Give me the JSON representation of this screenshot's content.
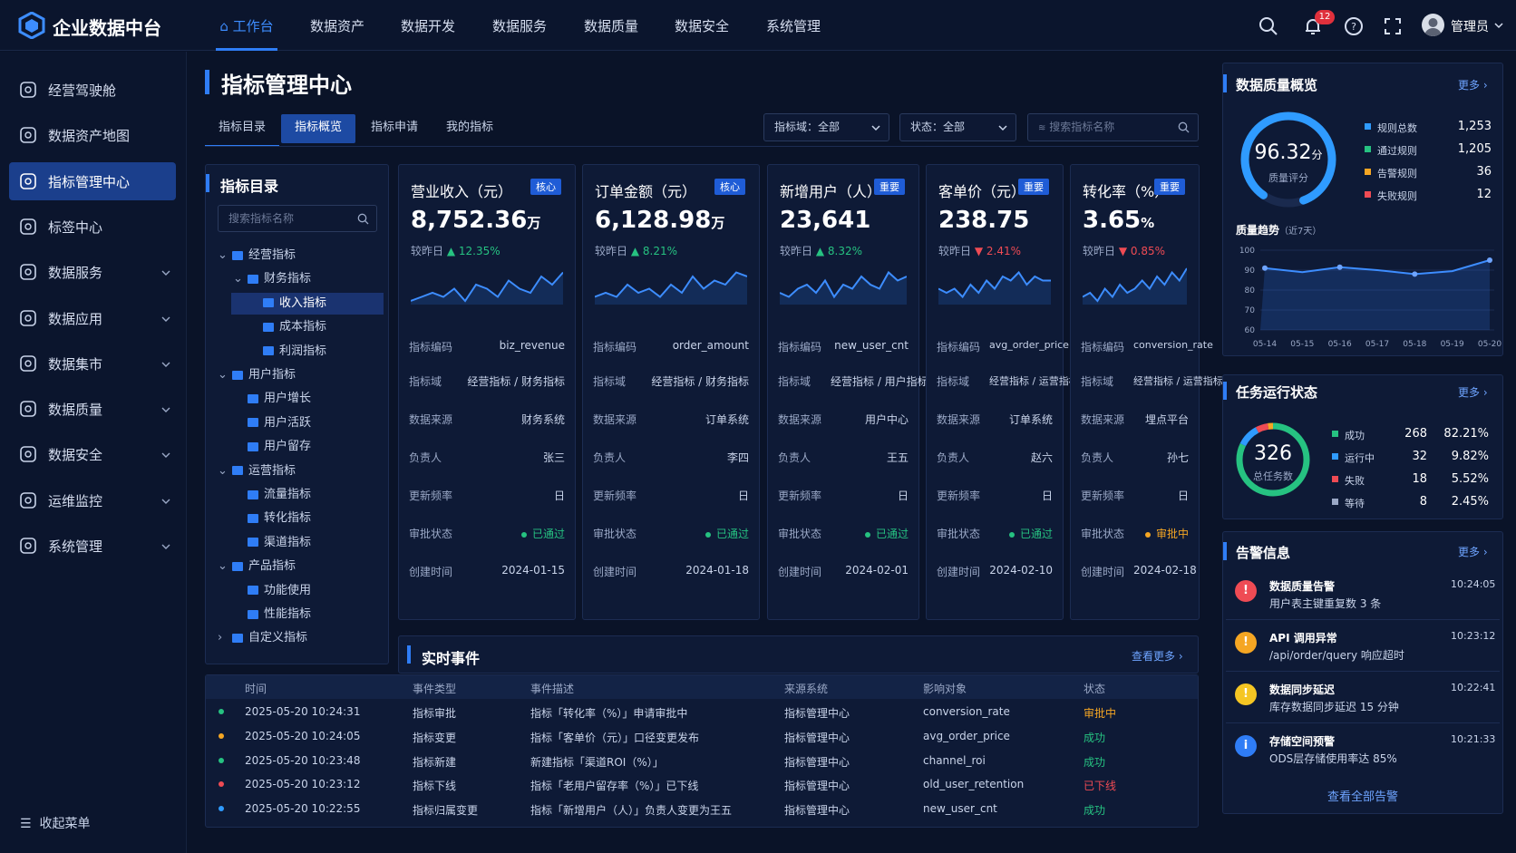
{
  "app": {
    "title": "企业数据中台"
  },
  "nav": [
    "工作台",
    "数据资产",
    "数据开发",
    "数据服务",
    "数据质量",
    "数据安全",
    "系统管理"
  ],
  "header": {
    "notif_count": "12",
    "user": "管理员"
  },
  "sidebar": {
    "items": [
      "经营驾驶舱",
      "数据资产地图",
      "指标管理中心",
      "标签中心",
      "数据服务",
      "数据应用",
      "数据集市",
      "数据质量",
      "数据安全",
      "运维监控",
      "系统管理"
    ],
    "collapse": "收起菜单"
  },
  "page": {
    "title": "指标管理中心",
    "tabs": [
      "指标目录",
      "指标概览",
      "指标申请",
      "我的指标"
    ],
    "filter_domain": "指标域：全部",
    "filter_status": "状态：全部",
    "search_placeholder": "搜索指标名称"
  },
  "tree": {
    "title": "指标目录",
    "search_placeholder": "搜索指标名称",
    "nodes": [
      "经营指标",
      "财务指标",
      "收入指标",
      "成本指标",
      "利润指标",
      "用户指标",
      "用户增长",
      "用户活跃",
      "用户留存",
      "运营指标",
      "流量指标",
      "转化指标",
      "渠道指标",
      "产品指标",
      "功能使用",
      "性能指标",
      "自定义指标"
    ]
  },
  "card_labels": {
    "compare": "较昨日",
    "code": "指标编码",
    "domain": "指标域",
    "source": "数据来源",
    "owner": "负责人",
    "freq": "更新频率",
    "approval": "审批状态",
    "created": "创建时间"
  },
  "cards": [
    {
      "title": "营业收入（元）",
      "tag": "核心",
      "value": "8,752.36",
      "unit": "万",
      "change": "12.35%",
      "code": "biz_revenue",
      "domain": "经营指标 / 财务指标",
      "source": "财务系统",
      "owner": "张三",
      "freq": "日",
      "status": "已通过",
      "created": "2024-01-15"
    },
    {
      "title": "订单金额（元）",
      "tag": "核心",
      "value": "6,128.98",
      "unit": "万",
      "change": "8.21%",
      "code": "order_amount",
      "domain": "经营指标 / 财务指标",
      "source": "订单系统",
      "owner": "李四",
      "freq": "日",
      "status": "已通过",
      "created": "2024-01-18"
    },
    {
      "title": "新增用户（人）",
      "tag": "重要",
      "value": "23,641",
      "unit": "",
      "change": "8.32%",
      "code": "new_user_cnt",
      "domain": "经营指标 / 用户指标",
      "source": "用户中心",
      "owner": "王五",
      "freq": "日",
      "status": "已通过",
      "created": "2024-02-01"
    },
    {
      "title": "客单价（元）",
      "tag": "重要",
      "value": "238.75",
      "unit": "",
      "change": "2.41%",
      "code": "avg_order_price",
      "domain": "经营指标 / 运营指标",
      "source": "订单系统",
      "owner": "赵六",
      "freq": "日",
      "status": "已通过",
      "created": "2024-02-10"
    },
    {
      "title": "转化率（%）",
      "tag": "重要",
      "value": "3.65",
      "unit": "%",
      "change": "0.85%",
      "code": "conversion_rate",
      "domain": "经营指标 / 运营指标",
      "source": "埋点平台",
      "owner": "孙七",
      "freq": "日",
      "status": "审批中",
      "created": "2024-02-18"
    }
  ],
  "events": {
    "title": "实时事件",
    "more": "查看更多",
    "headers": [
      "时间",
      "事件类型",
      "事件描述",
      "来源系统",
      "影响对象",
      "状态"
    ],
    "rows": [
      [
        "2025-05-20 10:24:31",
        "指标审批",
        "指标「转化率（%）」申请审批中",
        "指标管理中心",
        "conversion_rate",
        "审批中"
      ],
      [
        "2025-05-20 10:24:05",
        "指标变更",
        "指标「客单价（元）」口径变更发布",
        "指标管理中心",
        "avg_order_price",
        "成功"
      ],
      [
        "2025-05-20 10:23:48",
        "指标新建",
        "新建指标「渠道ROI（%）」",
        "指标管理中心",
        "channel_roi",
        "成功"
      ],
      [
        "2025-05-20 10:23:12",
        "指标下线",
        "指标「老用户留存率（%）」已下线",
        "指标管理中心",
        "old_user_retention",
        "已下线"
      ],
      [
        "2025-05-20 10:22:55",
        "指标归属变更",
        "指标「新增用户（人）」负责人变更为王五",
        "指标管理中心",
        "new_user_cnt",
        "成功"
      ]
    ]
  },
  "quality": {
    "title": "数据质量概览",
    "more": "更多",
    "score": "96.32",
    "score_unit": "分",
    "score_label": "质量评分",
    "legend": [
      [
        "规则总数",
        "1,253"
      ],
      [
        "通过规则",
        "1,205"
      ],
      [
        "告警规则",
        "36"
      ],
      [
        "失败规则",
        "12"
      ]
    ],
    "trend_title": "质量趋势",
    "trend_sub": "（近7天）"
  },
  "tasks": {
    "title": "任务运行状态",
    "more": "更多",
    "total": "326",
    "total_label": "总任务数",
    "legend": [
      [
        "成功",
        "268",
        "82.21%"
      ],
      [
        "运行中",
        "32",
        "9.82%"
      ],
      [
        "失败",
        "18",
        "5.52%"
      ],
      [
        "等待",
        "8",
        "2.45%"
      ]
    ]
  },
  "alerts": {
    "title": "告警信息",
    "more": "更多",
    "view_all": "查看全部告警",
    "items": [
      {
        "title": "数据质量告警",
        "desc": "用户表主键重复数 3 条",
        "time": "10:24:05"
      },
      {
        "title": "API 调用异常",
        "desc": "/api/order/query 响应超时",
        "time": "10:23:12"
      },
      {
        "title": "数据同步延迟",
        "desc": "库存数据同步延迟 15 分钟",
        "time": "10:22:41"
      },
      {
        "title": "存储空间预警",
        "desc": "ODS层存储使用率达 85%",
        "time": "10:21:33"
      }
    ]
  },
  "colors": {
    "accent": "#2f7df6",
    "success": "#26c281",
    "warning": "#f5a623",
    "danger": "#ef4b54"
  },
  "chart_data": {
    "type": "line",
    "x": [
      "05-14",
      "05-15",
      "05-16",
      "05-17",
      "05-18",
      "05-19",
      "05-20"
    ],
    "series": [
      {
        "values": [
          91,
          89,
          91.5,
          90,
          88,
          89.5,
          95
        ]
      }
    ],
    "ylim": [
      60,
      100
    ],
    "yticks": [
      "100",
      "90",
      "80",
      "70",
      "60"
    ]
  }
}
